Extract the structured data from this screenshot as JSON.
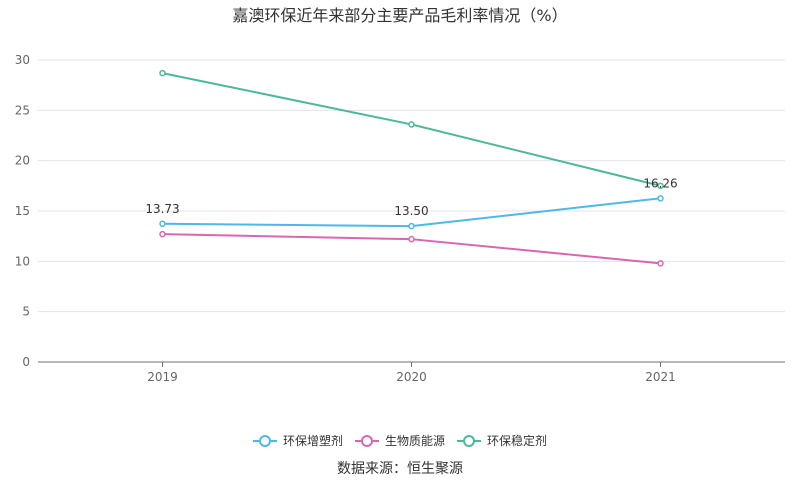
{
  "chart_data": {
    "type": "line",
    "title": "嘉澳环保近年来部分主要产品毛利率情况（%）",
    "categories": [
      "2019",
      "2020",
      "2021"
    ],
    "ylim": [
      0,
      30
    ],
    "yticks": [
      0,
      5,
      10,
      15,
      20,
      25,
      30
    ],
    "grid": true,
    "legend_position": "bottom",
    "series": [
      {
        "name": "环保增塑剂",
        "values": [
          13.73,
          13.5,
          16.26
        ],
        "color": "#4db8ea",
        "labels": [
          "13.73",
          "13.50",
          "16.26"
        ]
      },
      {
        "name": "生物质能源",
        "values": [
          12.7,
          12.2,
          9.8
        ],
        "color": "#d966b0",
        "labels": [
          "",
          "",
          ""
        ]
      },
      {
        "name": "环保稳定剂",
        "values": [
          28.7,
          23.6,
          17.5
        ],
        "color": "#4cb89a",
        "labels": [
          "",
          "",
          ""
        ]
      }
    ]
  },
  "source": "数据来源：恒生聚源"
}
